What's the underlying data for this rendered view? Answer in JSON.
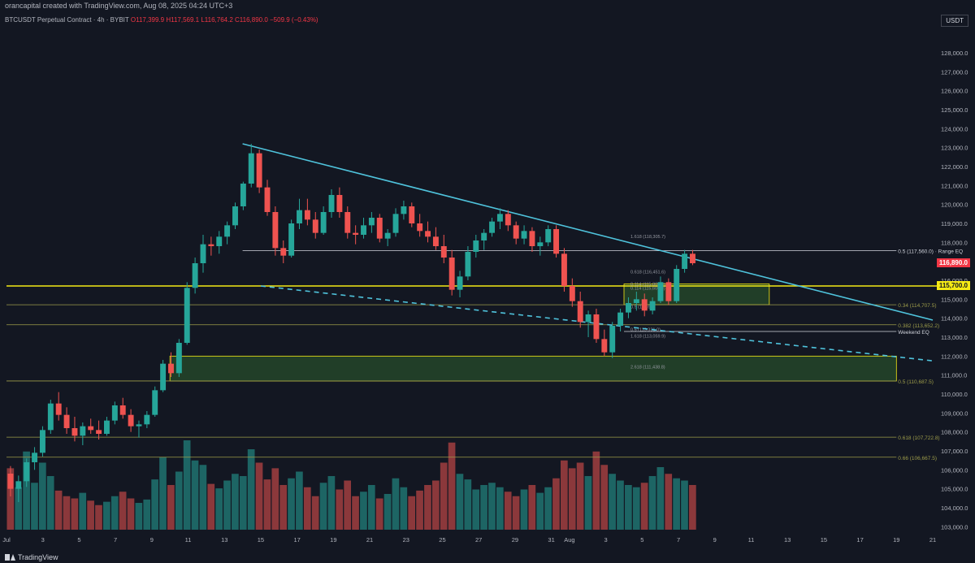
{
  "header": {
    "credit": "orancapital created with TradingView.com, Aug 08, 2025 04:24 UTC+3",
    "symbol": "BTCUSDT Perpetual Contract · 4h · BYBIT",
    "ohlc": "O117,399.9 H117,569.1 L116,764.2 C116,890.0 −509.9 (−0.43%)",
    "currency": "USDT"
  },
  "footer": {
    "brand": "TradingView"
  },
  "colors": {
    "background": "#131722",
    "up": "#26a69a",
    "down": "#ef5350",
    "trendline": "#4fc3dc",
    "key_level": "#f5ea14",
    "zone": "#2e5e2e"
  },
  "chart_data": {
    "type": "candlestick",
    "timeframe": "4h",
    "ylim": [
      102500,
      129500
    ],
    "x_ticks": [
      "Jul",
      "3",
      "5",
      "7",
      "9",
      "11",
      "13",
      "15",
      "17",
      "19",
      "21",
      "23",
      "25",
      "27",
      "29",
      "31",
      "Aug",
      "3",
      "5",
      "7",
      "9",
      "11",
      "13",
      "15",
      "17",
      "19",
      "21"
    ],
    "y_ticks": [
      "103,000.0",
      "104,000.0",
      "105,000.0",
      "106,000.0",
      "107,000.0",
      "108,000.0",
      "109,000.0",
      "110,000.0",
      "111,000.0",
      "112,000.0",
      "113,000.0",
      "114,000.0",
      "115,000.0",
      "116,000.0",
      "117,000.0",
      "118,000.0",
      "119,000.0",
      "120,000.0",
      "121,000.0",
      "122,000.0",
      "123,000.0",
      "124,000.0",
      "125,000.0",
      "126,000.0",
      "127,000.0",
      "128,000.0"
    ],
    "price_tags": [
      {
        "value": 116890,
        "label": "116,890.0",
        "color": "#f23645"
      },
      {
        "value": 115700,
        "label": "115,700.0",
        "color": "#f5ea14"
      }
    ],
    "levels": [
      {
        "value": 117560,
        "label": "0.5 (117,560.0) · Range EQ",
        "color": "#d1d4dc",
        "x0": "Jul 14",
        "x1": "Aug 19"
      },
      {
        "value": 115700,
        "label": "",
        "color": "#f5ea14",
        "x0": "Jul 1",
        "x1": "Aug 22"
      },
      {
        "value": 114707.5,
        "label": "0.34 (114,707.5)",
        "color": "#9e9d4a",
        "x0": "Jul 1",
        "x1": "Aug 19"
      },
      {
        "value": 113652.2,
        "label": "0.382 (113,652.2)",
        "color": "#9e9d4a",
        "x0": "Jul 1",
        "x1": "Aug 19"
      },
      {
        "value": 113300,
        "label": "Weekend EQ",
        "color": "#d1d4dc",
        "x0": "Aug 4",
        "x1": "Aug 19"
      },
      {
        "value": 110687.5,
        "label": "0.5 (110,687.5)",
        "color": "#9e9d4a",
        "x0": "Jul 1",
        "x1": "Aug 19"
      },
      {
        "value": 107722.8,
        "label": "0.618 (107,722.8)",
        "color": "#9e9d4a",
        "x0": "Jul 1",
        "x1": "Aug 19"
      },
      {
        "value": 106667.5,
        "label": "0.66 (106,667.5)",
        "color": "#9e9d4a",
        "x0": "Jul 1",
        "x1": "Aug 19"
      }
    ],
    "fib_labels": [
      {
        "value": 118305.7,
        "label": "1.618 (118,305.7)"
      },
      {
        "value": 116451.6,
        "label": "0.618 (116,451.6)"
      },
      {
        "value": 115809.0,
        "label": "0.114 (115,809.0)"
      },
      {
        "value": 115600.0,
        "label": "0.114 (115,600.0)"
      },
      {
        "value": 114600.0,
        "label": "0.5 (114,6..)"
      },
      {
        "value": 113400.0,
        "label": "0.5 (113,331.0)"
      },
      {
        "value": 113059.9,
        "label": "1.618 (113,059.9)"
      },
      {
        "value": 111438.8,
        "label": "2.618 (111,438.8)"
      }
    ],
    "zones": [
      {
        "from": 110687.5,
        "to": 112000,
        "x0": "Jul 10",
        "x1": "Aug 19"
      },
      {
        "from": 114707.5,
        "to": 115809,
        "x0": "Aug 4",
        "x1": "Aug 12"
      }
    ],
    "trendlines": [
      {
        "name": "descending-resistance",
        "points": [
          [
            "Jul 14",
            123200
          ],
          [
            "Aug 21",
            113900
          ]
        ],
        "style": "solid"
      },
      {
        "name": "lower-dashed-support",
        "points": [
          [
            "Jul 15",
            115700
          ],
          [
            "Aug 21",
            111750
          ]
        ],
        "style": "dashed"
      }
    ],
    "ohlc": [
      [
        105800,
        106200,
        104600,
        105000
      ],
      [
        105000,
        105700,
        104300,
        105400
      ],
      [
        105400,
        106600,
        105100,
        106400
      ],
      [
        106400,
        107200,
        106000,
        106900
      ],
      [
        106900,
        108300,
        106700,
        108100
      ],
      [
        108100,
        109700,
        107900,
        109500
      ],
      [
        109500,
        110100,
        108600,
        108900
      ],
      [
        108900,
        109300,
        107900,
        108200
      ],
      [
        108200,
        108800,
        107500,
        107800
      ],
      [
        107800,
        108500,
        107300,
        108300
      ],
      [
        108300,
        108700,
        107900,
        108100
      ],
      [
        108100,
        108600,
        107600,
        107900
      ],
      [
        107900,
        108800,
        107800,
        108600
      ],
      [
        108600,
        109600,
        108400,
        109400
      ],
      [
        109400,
        109800,
        108700,
        108900
      ],
      [
        108900,
        109200,
        108000,
        108300
      ],
      [
        108300,
        108600,
        107700,
        108400
      ],
      [
        108400,
        109100,
        108200,
        108900
      ],
      [
        108900,
        110400,
        108800,
        110200
      ],
      [
        110200,
        111800,
        110100,
        111600
      ],
      [
        111600,
        112200,
        110900,
        111100
      ],
      [
        111100,
        112900,
        110900,
        112700
      ],
      [
        112700,
        115900,
        112600,
        115600
      ],
      [
        115600,
        117200,
        115300,
        116900
      ],
      [
        116900,
        118400,
        116400,
        117900
      ],
      [
        117900,
        118300,
        117300,
        117800
      ],
      [
        117800,
        118600,
        117400,
        118300
      ],
      [
        118300,
        119100,
        117900,
        118900
      ],
      [
        118900,
        120100,
        118700,
        119900
      ],
      [
        119900,
        121200,
        119700,
        121100
      ],
      [
        121100,
        123200,
        120900,
        122700
      ],
      [
        122700,
        122900,
        120600,
        120900
      ],
      [
        120900,
        121300,
        119400,
        119600
      ],
      [
        119600,
        119900,
        117300,
        117700
      ],
      [
        117700,
        118100,
        116900,
        117300
      ],
      [
        117300,
        119200,
        117200,
        119000
      ],
      [
        119000,
        120300,
        118700,
        119700
      ],
      [
        119700,
        120300,
        118900,
        119200
      ],
      [
        119200,
        119600,
        118200,
        118500
      ],
      [
        118500,
        119900,
        118400,
        119600
      ],
      [
        119600,
        120800,
        119300,
        120500
      ],
      [
        120500,
        120900,
        119300,
        119600
      ],
      [
        119600,
        119900,
        118200,
        118500
      ],
      [
        118500,
        118900,
        117900,
        118400
      ],
      [
        118400,
        119300,
        118200,
        118900
      ],
      [
        118900,
        119600,
        118500,
        119300
      ],
      [
        119300,
        119500,
        118000,
        118200
      ],
      [
        118200,
        118700,
        117800,
        118500
      ],
      [
        118500,
        119800,
        118300,
        119500
      ],
      [
        119500,
        120200,
        119200,
        119900
      ],
      [
        119900,
        120100,
        118800,
        119000
      ],
      [
        119000,
        119500,
        118300,
        118600
      ],
      [
        118600,
        119100,
        118000,
        118300
      ],
      [
        118300,
        118800,
        117600,
        117800
      ],
      [
        117800,
        118400,
        116900,
        117200
      ],
      [
        117200,
        117600,
        115200,
        115500
      ],
      [
        115500,
        116500,
        115100,
        116200
      ],
      [
        116200,
        117800,
        116000,
        117500
      ],
      [
        117500,
        118400,
        117200,
        118100
      ],
      [
        118100,
        118700,
        117600,
        118500
      ],
      [
        118500,
        119300,
        118300,
        119100
      ],
      [
        119100,
        119800,
        118700,
        119500
      ],
      [
        119500,
        119700,
        118600,
        118900
      ],
      [
        118900,
        119100,
        117900,
        118200
      ],
      [
        118200,
        118900,
        117900,
        118600
      ],
      [
        118600,
        118800,
        117500,
        117800
      ],
      [
        117800,
        118300,
        117300,
        118000
      ],
      [
        118000,
        118900,
        117800,
        118700
      ],
      [
        118700,
        118900,
        117200,
        117400
      ],
      [
        117400,
        117700,
        115400,
        115700
      ],
      [
        115700,
        116100,
        114600,
        114900
      ],
      [
        114900,
        115400,
        113500,
        113800
      ],
      [
        113800,
        114400,
        113000,
        114200
      ],
      [
        114200,
        114500,
        112700,
        112900
      ],
      [
        112900,
        113400,
        112000,
        112200
      ],
      [
        112200,
        113800,
        111900,
        113600
      ],
      [
        113600,
        114500,
        113300,
        114300
      ],
      [
        114300,
        115100,
        114000,
        114800
      ],
      [
        114800,
        115400,
        114400,
        115000
      ],
      [
        115000,
        115300,
        114100,
        114400
      ],
      [
        114400,
        115100,
        114200,
        114900
      ],
      [
        114900,
        116200,
        114800,
        115900
      ],
      [
        115900,
        116100,
        114700,
        114900
      ],
      [
        114900,
        116800,
        114800,
        116600
      ],
      [
        116600,
        117600,
        116400,
        117400
      ],
      [
        117400,
        117600,
        116800,
        116900
      ]
    ],
    "volume": [
      55,
      38,
      70,
      42,
      60,
      48,
      35,
      30,
      28,
      33,
      26,
      22,
      25,
      30,
      34,
      28,
      24,
      27,
      45,
      65,
      40,
      52,
      80,
      62,
      58,
      41,
      37,
      44,
      50,
      48,
      72,
      60,
      45,
      55,
      40,
      46,
      52,
      38,
      30,
      42,
      48,
      36,
      44,
      30,
      34,
      40,
      28,
      32,
      46,
      38,
      30,
      35,
      40,
      44,
      60,
      78,
      50,
      45,
      36,
      40,
      42,
      38,
      34,
      30,
      36,
      40,
      33,
      38,
      46,
      62,
      55,
      60,
      48,
      70,
      58,
      50,
      44,
      40,
      38,
      42,
      48,
      56,
      50,
      46,
      44,
      40
    ]
  }
}
